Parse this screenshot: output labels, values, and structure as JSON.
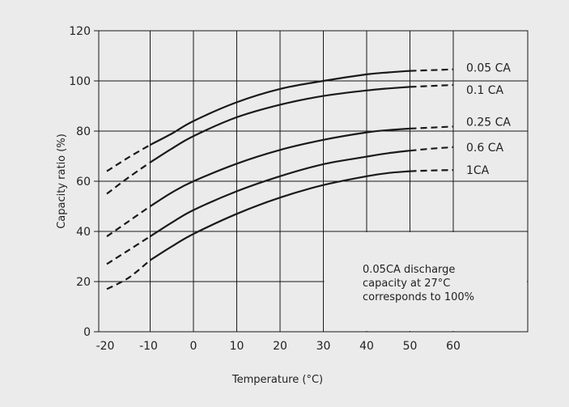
{
  "chart_data": {
    "type": "line",
    "xlabel": "Temperature (°C)",
    "ylabel": "Capacity ratio (%)",
    "xlim": [
      -20,
      60
    ],
    "ylim": [
      0,
      120
    ],
    "x_ticks": [
      -20,
      -10,
      0,
      10,
      20,
      30,
      40,
      50,
      60
    ],
    "y_ticks": [
      0,
      20,
      40,
      60,
      80,
      100,
      120
    ],
    "grid": true,
    "note": [
      "0.05CA discharge",
      "capacity at 27°C",
      "corresponds to 100%"
    ],
    "series": [
      {
        "name": "0.05 CA",
        "dashed": [
          [
            -20,
            64
          ],
          [
            -15,
            69.5
          ],
          [
            -10,
            74.5
          ]
        ],
        "solid": [
          [
            -10,
            74.5
          ],
          [
            -5,
            79
          ],
          [
            0,
            84
          ],
          [
            10,
            91.5
          ],
          [
            20,
            96.8
          ],
          [
            30,
            100
          ],
          [
            40,
            102.6
          ],
          [
            45,
            103.4
          ],
          [
            50,
            104
          ]
        ],
        "dashed_end": [
          [
            50,
            104
          ],
          [
            55,
            104.3
          ],
          [
            60,
            104.6
          ]
        ]
      },
      {
        "name": "0.1 CA",
        "dashed": [
          [
            -20,
            55
          ],
          [
            -15,
            61.5
          ],
          [
            -10,
            67.5
          ]
        ],
        "solid": [
          [
            -10,
            67.5
          ],
          [
            -5,
            73
          ],
          [
            0,
            78
          ],
          [
            10,
            85.5
          ],
          [
            20,
            90.5
          ],
          [
            30,
            94
          ],
          [
            40,
            96.2
          ],
          [
            45,
            97
          ],
          [
            50,
            97.6
          ]
        ],
        "dashed_end": [
          [
            50,
            97.6
          ],
          [
            55,
            98
          ],
          [
            60,
            98.4
          ]
        ]
      },
      {
        "name": "0.25 CA",
        "dashed": [
          [
            -20,
            38
          ],
          [
            -15,
            44
          ],
          [
            -10,
            50
          ]
        ],
        "solid": [
          [
            -10,
            50
          ],
          [
            -5,
            55.5
          ],
          [
            0,
            60
          ],
          [
            10,
            67
          ],
          [
            20,
            72.5
          ],
          [
            30,
            76.5
          ],
          [
            40,
            79.5
          ],
          [
            45,
            80.4
          ],
          [
            50,
            81
          ]
        ],
        "dashed_end": [
          [
            50,
            81
          ],
          [
            55,
            81.4
          ],
          [
            60,
            81.8
          ]
        ]
      },
      {
        "name": "0.6 CA",
        "dashed": [
          [
            -20,
            27
          ],
          [
            -15,
            32.5
          ],
          [
            -10,
            38
          ]
        ],
        "solid": [
          [
            -10,
            38
          ],
          [
            -5,
            43.5
          ],
          [
            0,
            48.5
          ],
          [
            10,
            56
          ],
          [
            20,
            62
          ],
          [
            30,
            66.8
          ],
          [
            40,
            69.8
          ],
          [
            45,
            71.2
          ],
          [
            50,
            72.2
          ]
        ],
        "dashed_end": [
          [
            50,
            72.2
          ],
          [
            55,
            73
          ],
          [
            60,
            73.6
          ]
        ]
      },
      {
        "name": "1CA",
        "dashed": [
          [
            -20,
            17
          ],
          [
            -15,
            21.5
          ],
          [
            -10,
            28.5
          ]
        ],
        "solid": [
          [
            -10,
            28.5
          ],
          [
            -5,
            34
          ],
          [
            0,
            39
          ],
          [
            10,
            47
          ],
          [
            20,
            53.5
          ],
          [
            30,
            58.5
          ],
          [
            40,
            62
          ],
          [
            45,
            63.3
          ],
          [
            50,
            64
          ]
        ],
        "dashed_end": [
          [
            50,
            64
          ],
          [
            55,
            64.3
          ],
          [
            60,
            64.5
          ]
        ]
      }
    ]
  }
}
